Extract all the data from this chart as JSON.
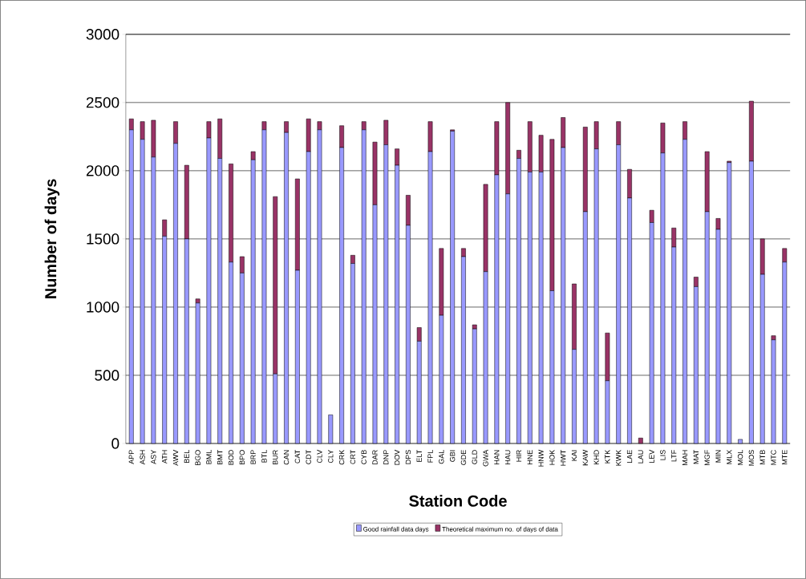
{
  "chart_data": {
    "type": "bar",
    "stacked": true,
    "xlabel": "Station Code",
    "ylabel": "Number of days",
    "categories": [
      "APP",
      "ASH",
      "ASY",
      "ATH",
      "AWV",
      "BEL",
      "BGO",
      "BML",
      "BMT",
      "BOD",
      "BPO",
      "BRP",
      "BTL",
      "BUR",
      "CAN",
      "CAT",
      "CDT",
      "CLV",
      "CLY",
      "CRK",
      "CRT",
      "CYB",
      "DAR",
      "DNP",
      "DOV",
      "DPS",
      "ELT",
      "FPL",
      "GAL",
      "GBI",
      "GDE",
      "GLD",
      "GWA",
      "HAN",
      "HAU",
      "HIR",
      "HNE",
      "HNW",
      "HOK",
      "HWT",
      "KAI",
      "KAW",
      "KHD",
      "KTK",
      "KWK",
      "LAE",
      "LAU",
      "LEV",
      "LIS",
      "LTF",
      "MAH",
      "MAT",
      "MGF",
      "MIN",
      "MLX",
      "MOL",
      "MOS",
      "MTB",
      "MTC",
      "MTE"
    ],
    "series": [
      {
        "name": "Good rainfall data days",
        "color": "#9999ff",
        "values": [
          2300,
          2230,
          2100,
          1520,
          2200,
          1500,
          1030,
          2240,
          2090,
          1330,
          1250,
          2080,
          2300,
          510,
          2280,
          1270,
          2140,
          2300,
          210,
          2170,
          1320,
          2300,
          1750,
          2190,
          2040,
          1600,
          750,
          2140,
          940,
          2290,
          1370,
          840,
          1260,
          1970,
          1830,
          2090,
          1990,
          1990,
          1120,
          2170,
          690,
          1700,
          2160,
          460,
          2190,
          1800,
          0,
          1620,
          2130,
          1440,
          2230,
          1150,
          1700,
          1570,
          2060,
          30,
          2070,
          1240,
          760,
          1330
        ]
      },
      {
        "name": "Theoretical maximum no. of days of data",
        "color": "#993366",
        "values": [
          80,
          130,
          270,
          120,
          160,
          540,
          30,
          120,
          290,
          720,
          120,
          60,
          60,
          1300,
          80,
          670,
          240,
          60,
          0,
          160,
          60,
          60,
          460,
          180,
          120,
          220,
          100,
          220,
          490,
          10,
          60,
          30,
          640,
          390,
          670,
          60,
          370,
          270,
          1110,
          220,
          480,
          620,
          200,
          350,
          170,
          210,
          40,
          90,
          220,
          140,
          130,
          70,
          440,
          80,
          10,
          0,
          440,
          260,
          30,
          100
        ]
      }
    ],
    "ylim": [
      0,
      3000
    ],
    "yticks": [
      0,
      500,
      1000,
      1500,
      2000,
      2500,
      3000
    ],
    "grid": "y",
    "legend": "bottom"
  }
}
